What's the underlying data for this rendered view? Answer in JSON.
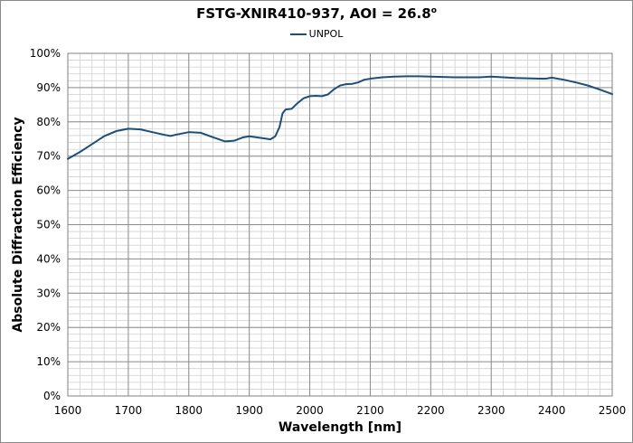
{
  "chart_data": {
    "type": "line",
    "title": "FSTG-XNIR410-937, AOI = 26.8",
    "title_sup": "o",
    "xlabel": "Wavelength [nm]",
    "ylabel": "Absolute Diffraction Efficiency",
    "xlim": [
      1600,
      2500
    ],
    "ylim": [
      0,
      100
    ],
    "x_ticks": [
      1600,
      1700,
      1800,
      1900,
      2000,
      2100,
      2200,
      2300,
      2400,
      2500
    ],
    "x_tick_labels": [
      "1600",
      "1700",
      "1800",
      "1900",
      "2000",
      "2100",
      "2200",
      "2300",
      "2400",
      "2500"
    ],
    "y_ticks": [
      0,
      10,
      20,
      30,
      40,
      50,
      60,
      70,
      80,
      90,
      100
    ],
    "y_tick_labels": [
      "0%",
      "10%",
      "20%",
      "30%",
      "40%",
      "50%",
      "60%",
      "70%",
      "80%",
      "90%",
      "100%"
    ],
    "grid": true,
    "minor_grid_x_step": 20,
    "minor_grid_y_step": 2,
    "legend_position": "top-center",
    "series": [
      {
        "name": "UNPOL",
        "color": "#1f4e79",
        "x": [
          1600,
          1620,
          1640,
          1660,
          1680,
          1700,
          1720,
          1740,
          1760,
          1770,
          1780,
          1800,
          1820,
          1840,
          1860,
          1875,
          1890,
          1900,
          1920,
          1935,
          1943,
          1950,
          1955,
          1960,
          1970,
          1980,
          1990,
          2000,
          2010,
          2020,
          2030,
          2040,
          2050,
          2060,
          2070,
          2080,
          2090,
          2100,
          2120,
          2140,
          2160,
          2180,
          2200,
          2220,
          2240,
          2260,
          2280,
          2300,
          2320,
          2340,
          2360,
          2380,
          2390,
          2400,
          2420,
          2440,
          2460,
          2480,
          2500
        ],
        "y": [
          69.2,
          71.2,
          73.5,
          75.8,
          77.3,
          78.0,
          77.8,
          77.0,
          76.2,
          75.9,
          76.3,
          77.0,
          76.8,
          75.5,
          74.3,
          74.5,
          75.5,
          75.8,
          75.3,
          74.9,
          75.8,
          78.5,
          82.5,
          83.6,
          83.8,
          85.5,
          86.9,
          87.5,
          87.6,
          87.5,
          88.0,
          89.5,
          90.6,
          91.0,
          91.1,
          91.5,
          92.3,
          92.6,
          93.0,
          93.2,
          93.3,
          93.3,
          93.2,
          93.1,
          93.0,
          93.0,
          93.0,
          93.2,
          93.0,
          92.8,
          92.7,
          92.6,
          92.6,
          92.9,
          92.3,
          91.5,
          90.6,
          89.4,
          88.1
        ]
      }
    ]
  }
}
